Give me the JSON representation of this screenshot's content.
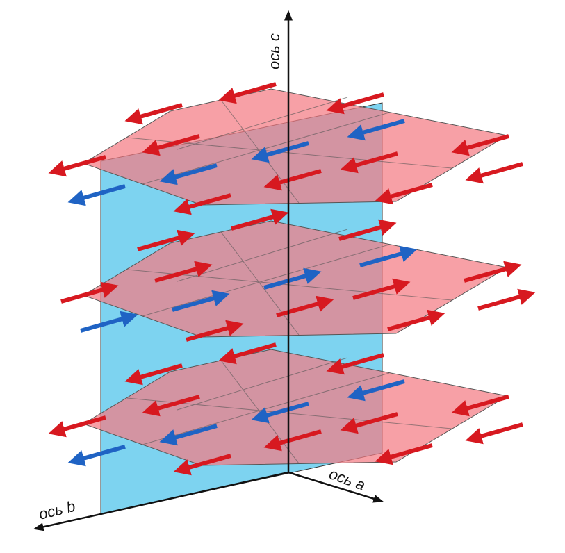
{
  "axes": {
    "c": "ось c",
    "a": "ось a",
    "b": "ось b"
  }
}
